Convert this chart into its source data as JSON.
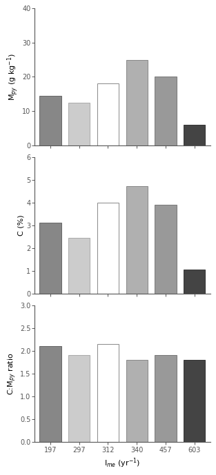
{
  "categories": [
    "197",
    "297",
    "312",
    "340",
    "457",
    "603"
  ],
  "bar_colors": [
    "#878787",
    "#cccccc",
    "#ffffff",
    "#b0b0b0",
    "#999999",
    "#444444"
  ],
  "bar_edgecolors": [
    "#666666",
    "#aaaaaa",
    "#888888",
    "#888888",
    "#777777",
    "#333333"
  ],
  "panel1": {
    "values": [
      14.5,
      12.5,
      18.0,
      25.0,
      20.0,
      6.0
    ],
    "ylabel": "M$_{py}$ (g kg$^{-1}$)",
    "ylim": [
      0,
      40
    ],
    "yticks": [
      0,
      10,
      20,
      30,
      40
    ],
    "yticklabels": [
      "0",
      "10",
      "20",
      "30",
      "40"
    ]
  },
  "panel2": {
    "values": [
      3.1,
      2.45,
      4.0,
      4.7,
      3.9,
      1.05
    ],
    "ylabel": "C (%)",
    "ylim": [
      0,
      6
    ],
    "yticks": [
      0,
      1,
      2,
      3,
      4,
      5,
      6
    ],
    "yticklabels": [
      "0",
      "1",
      "2",
      "3",
      "4",
      "5",
      "6"
    ]
  },
  "panel3": {
    "values": [
      2.1,
      1.9,
      2.15,
      1.8,
      1.9,
      1.8
    ],
    "ylabel": "C:M$_{py}$ ratio",
    "ylim": [
      0.0,
      3.0
    ],
    "yticks": [
      0.0,
      0.5,
      1.0,
      1.5,
      2.0,
      2.5,
      3.0
    ],
    "yticklabels": [
      "0.0",
      "0.5",
      "1.0",
      "1.5",
      "2.0",
      "2.5",
      "3.0"
    ]
  },
  "xlabel": "I$_{me}$ (yr$^{-1}$)",
  "background_color": "#ffffff",
  "bar_width": 0.75,
  "tick_fontsize": 7,
  "label_fontsize": 8
}
